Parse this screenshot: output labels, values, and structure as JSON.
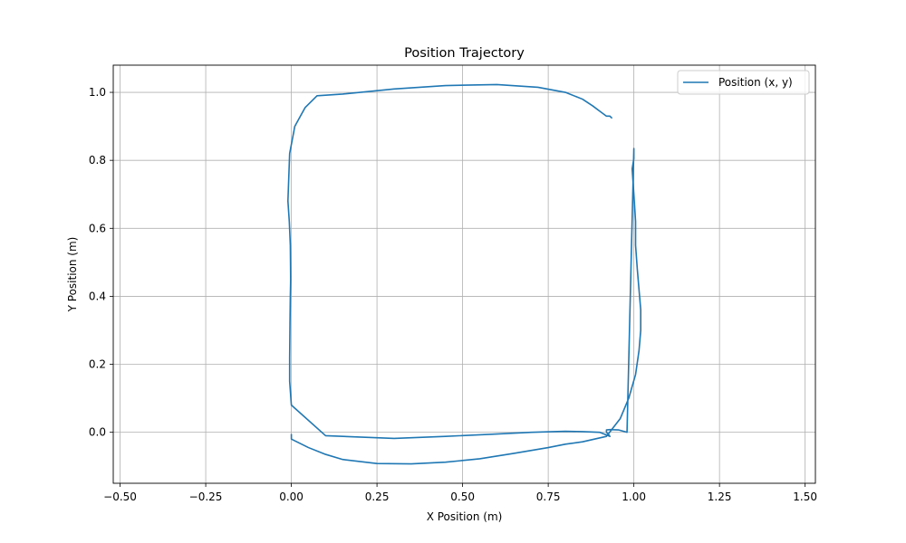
{
  "chart_data": {
    "type": "line",
    "title": "Position Trajectory",
    "xlabel": "X Position (m)",
    "ylabel": "Y Position (m)",
    "xlim": [
      -0.52,
      1.53
    ],
    "ylim": [
      -0.15,
      1.08
    ],
    "xticks": [
      -0.5,
      -0.25,
      0.0,
      0.25,
      0.5,
      0.75,
      1.0,
      1.25,
      1.5
    ],
    "xtick_labels": [
      "−0.50",
      "−0.25",
      "0.00",
      "0.25",
      "0.50",
      "0.75",
      "1.00",
      "1.25",
      "1.50"
    ],
    "yticks": [
      0.0,
      0.2,
      0.4,
      0.6,
      0.8,
      1.0
    ],
    "ytick_labels": [
      "0.0",
      "0.2",
      "0.4",
      "0.6",
      "0.8",
      "1.0"
    ],
    "grid": true,
    "legend_position": "top-right",
    "series": [
      {
        "name": "Position (x, y)",
        "color": "#1f77b4",
        "x": [
          0.0,
          0.0,
          0.05,
          0.1,
          0.15,
          0.25,
          0.35,
          0.45,
          0.55,
          0.65,
          0.75,
          0.8,
          0.85,
          0.92,
          0.96,
          0.985,
          1.005,
          1.015,
          1.02,
          1.02,
          1.015,
          1.01,
          1.005,
          1.005,
          1.0,
          0.995,
          1.0,
          1.0,
          0.98,
          0.955,
          0.93,
          0.92,
          0.92,
          0.925,
          0.93,
          0.9,
          0.85,
          0.8,
          0.7,
          0.6,
          0.45,
          0.3,
          0.1,
          0.0,
          -0.005,
          -0.005,
          -0.004,
          -0.003,
          -0.002,
          -0.003,
          -0.006,
          -0.01,
          -0.005,
          0.01,
          0.04,
          0.075,
          0.15,
          0.3,
          0.45,
          0.6,
          0.72,
          0.8,
          0.85,
          0.88,
          0.9,
          0.92,
          0.93,
          0.935,
          0.93
        ],
        "y": [
          -0.005,
          -0.02,
          -0.045,
          -0.065,
          -0.08,
          -0.092,
          -0.093,
          -0.088,
          -0.078,
          -0.062,
          -0.045,
          -0.035,
          -0.028,
          -0.012,
          0.04,
          0.1,
          0.17,
          0.24,
          0.3,
          0.36,
          0.42,
          0.48,
          0.55,
          0.62,
          0.7,
          0.775,
          0.805,
          0.835,
          0.0,
          0.007,
          0.008,
          0.007,
          0.0,
          -0.005,
          -0.012,
          0.0,
          0.002,
          0.003,
          0.0,
          -0.005,
          -0.012,
          -0.018,
          -0.01,
          0.08,
          0.15,
          0.22,
          0.32,
          0.4,
          0.45,
          0.55,
          0.62,
          0.68,
          0.82,
          0.9,
          0.955,
          0.99,
          0.995,
          1.01,
          1.02,
          1.023,
          1.015,
          1.0,
          0.98,
          0.96,
          0.945,
          0.93,
          0.93,
          0.925,
          0.93
        ]
      }
    ]
  }
}
